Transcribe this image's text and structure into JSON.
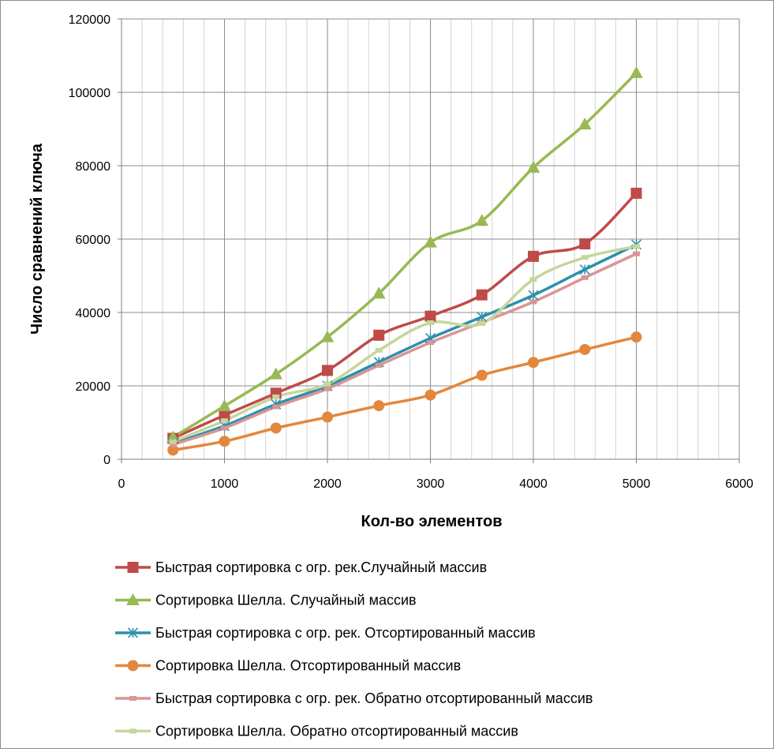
{
  "chart_data": {
    "type": "line",
    "xlabel": "Кол-во элементов",
    "ylabel": "Число сравнений ключа",
    "xlim": [
      0,
      6000
    ],
    "ylim": [
      0,
      120000
    ],
    "x_ticks": [
      0,
      1000,
      2000,
      3000,
      4000,
      5000,
      6000
    ],
    "y_ticks": [
      0,
      20000,
      40000,
      60000,
      80000,
      100000,
      120000
    ],
    "x_minor_step": 200,
    "grid": true,
    "legend_position": "bottom",
    "x": [
      500,
      1000,
      1500,
      2000,
      2500,
      3000,
      3500,
      4000,
      4500,
      5000
    ],
    "series": [
      {
        "name": "Быстрая сортировка с огр. рек.Случайный массив",
        "color": "#be4b48",
        "marker": "square",
        "values": [
          5700,
          12000,
          18000,
          24200,
          33800,
          39000,
          44800,
          55300,
          58700,
          72500
        ]
      },
      {
        "name": "Сортировка Шелла. Случайный массив",
        "color": "#98b954",
        "marker": "triangle",
        "values": [
          6000,
          14500,
          23200,
          33300,
          45200,
          59100,
          65000,
          79500,
          91300,
          105300
        ]
      },
      {
        "name": "Быстрая сортировка с огр. рек. Отсортированный массив",
        "color": "#2e8fad",
        "marker": "star",
        "values": [
          4300,
          9100,
          15000,
          20000,
          26500,
          33000,
          38800,
          44700,
          51700,
          58500
        ]
      },
      {
        "name": "Сортировка Шелла. Отсортированный массив",
        "color": "#e3873d",
        "marker": "circle",
        "values": [
          2500,
          4900,
          8500,
          11500,
          14600,
          17500,
          22900,
          26400,
          29900,
          33300
        ]
      },
      {
        "name": "Быстрая сортировка с огр. рек. Обратно отсортированный массив",
        "color": "#d99694",
        "marker": "dash",
        "values": [
          4000,
          8500,
          14300,
          19200,
          25600,
          31800,
          37300,
          42900,
          49500,
          56000
        ]
      },
      {
        "name": "Сортировка Шелла. Обратно отсортированный массив",
        "color": "#c4d79b",
        "marker": "dash",
        "values": [
          4800,
          10500,
          17000,
          20500,
          29700,
          37200,
          37000,
          49000,
          55000,
          58000
        ]
      }
    ]
  }
}
